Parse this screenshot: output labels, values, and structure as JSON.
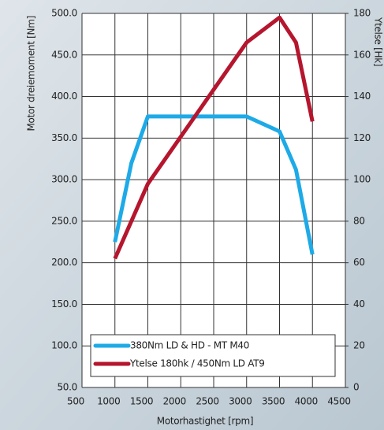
{
  "chart_data": {
    "type": "line",
    "xlabel": "Motorhastighet [rpm]",
    "ylabel": "Motor dreiemoment [Nm]",
    "y2label": "Ytelse [Hk]",
    "xlim": [
      500,
      4500
    ],
    "xticks": [
      500,
      1000,
      1500,
      2000,
      2500,
      3000,
      3500,
      4000,
      4500
    ],
    "ylim": [
      50,
      500
    ],
    "yticks": [
      {
        "value": 50,
        "label": "50.0"
      },
      {
        "value": 100,
        "label": "100.0"
      },
      {
        "value": 150,
        "label": "150.0"
      },
      {
        "value": 200,
        "label": "200.0"
      },
      {
        "value": 250,
        "label": "250.0"
      },
      {
        "value": 300,
        "label": "300.0"
      },
      {
        "value": 350,
        "label": "350.0"
      },
      {
        "value": 400,
        "label": "400.0"
      },
      {
        "value": 450,
        "label": "450.0"
      },
      {
        "value": 500,
        "label": "500.0"
      }
    ],
    "y2lim": [
      0,
      180
    ],
    "y2ticks": [
      0,
      20,
      40,
      60,
      80,
      100,
      120,
      140,
      160,
      180
    ],
    "grid": true,
    "legend": "lower left",
    "series": [
      {
        "name": "380Nm LD & HD - MT M40",
        "color": "#1eaae7",
        "x": [
          1000,
          1250,
          1500,
          3000,
          3500,
          3750,
          4000
        ],
        "values": [
          225,
          320,
          376,
          376,
          358,
          312,
          210
        ]
      },
      {
        "name": "Ytelse 180hk / 450Nm LD AT9",
        "color": "#b5162e",
        "axis": "y2",
        "x": [
          1000,
          1500,
          3000,
          3500,
          3750,
          4000
        ],
        "values": [
          62,
          98,
          166,
          178,
          166,
          128
        ]
      }
    ]
  }
}
